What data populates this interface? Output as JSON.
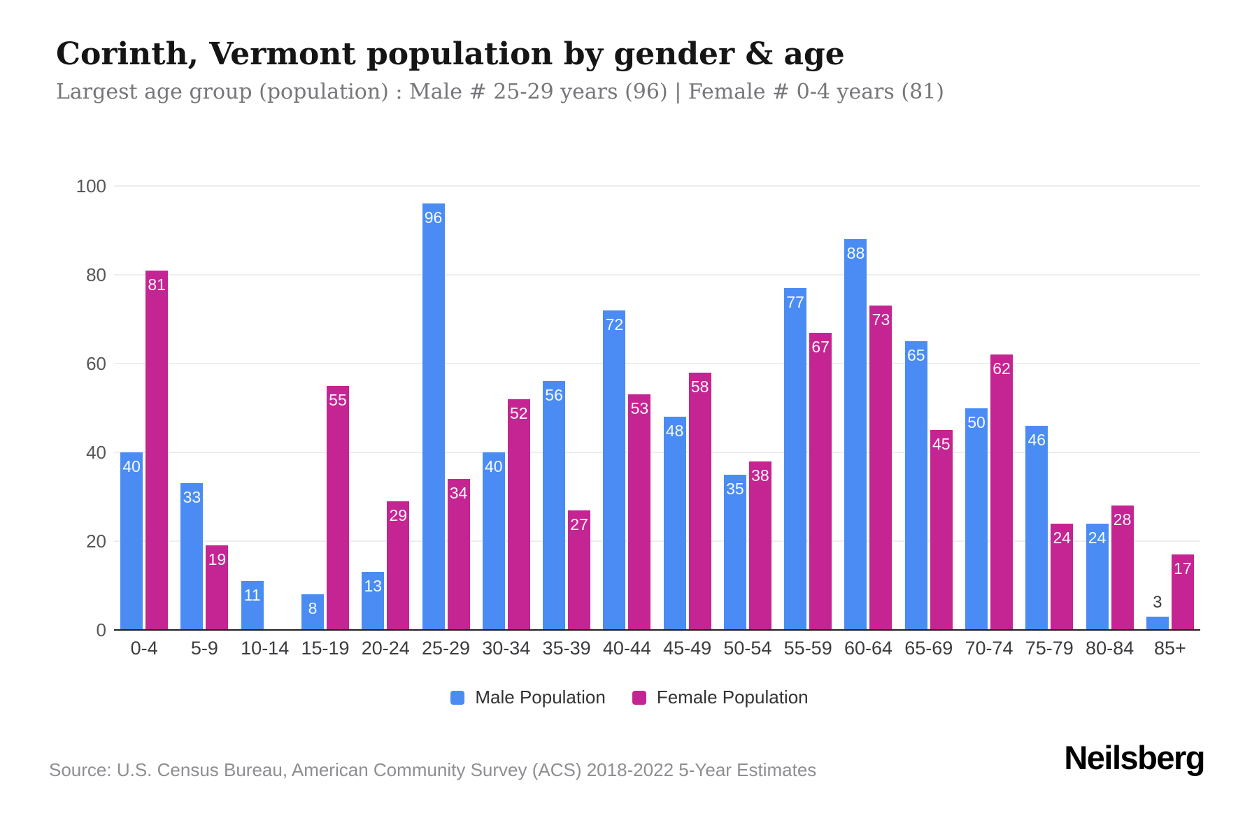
{
  "title": "Corinth, Vermont population by gender & age",
  "subtitle": "Largest age group (population) : Male # 25-29 years (96) | Female # 0-4 years (81)",
  "source": "Source: U.S. Census Bureau, American Community Survey (ACS) 2018-2022 5-Year Estimates",
  "logo": "Neilsberg",
  "colors": {
    "male": "#4a8cf4",
    "female": "#c42592",
    "grid": "#eeeeee",
    "axis": "#202020",
    "title_text": "#151515",
    "subtitle_text": "#77777b",
    "tick_text": "#3c3c40",
    "source_text": "#8e8e92"
  },
  "chart_data": {
    "type": "bar",
    "categories": [
      "0-4",
      "5-9",
      "10-14",
      "15-19",
      "20-24",
      "25-29",
      "30-34",
      "35-39",
      "40-44",
      "45-49",
      "50-54",
      "55-59",
      "60-64",
      "65-69",
      "70-74",
      "75-79",
      "80-84",
      "85+"
    ],
    "series": [
      {
        "name": "Male Population",
        "color": "#4a8cf4",
        "values": [
          40,
          33,
          11,
          8,
          13,
          96,
          40,
          56,
          72,
          48,
          35,
          77,
          88,
          65,
          50,
          46,
          24,
          3
        ]
      },
      {
        "name": "Female Population",
        "color": "#c42592",
        "values": [
          81,
          19,
          0,
          55,
          29,
          34,
          52,
          27,
          53,
          58,
          38,
          67,
          73,
          45,
          62,
          24,
          28,
          17
        ]
      }
    ],
    "title": "Corinth, Vermont population by gender & age",
    "xlabel": "",
    "ylabel": "",
    "ylim": [
      0,
      100
    ],
    "yticks": [
      0,
      20,
      40,
      60,
      80,
      100
    ],
    "grid": true,
    "legend_position": "bottom",
    "bar_value_labels": true
  }
}
